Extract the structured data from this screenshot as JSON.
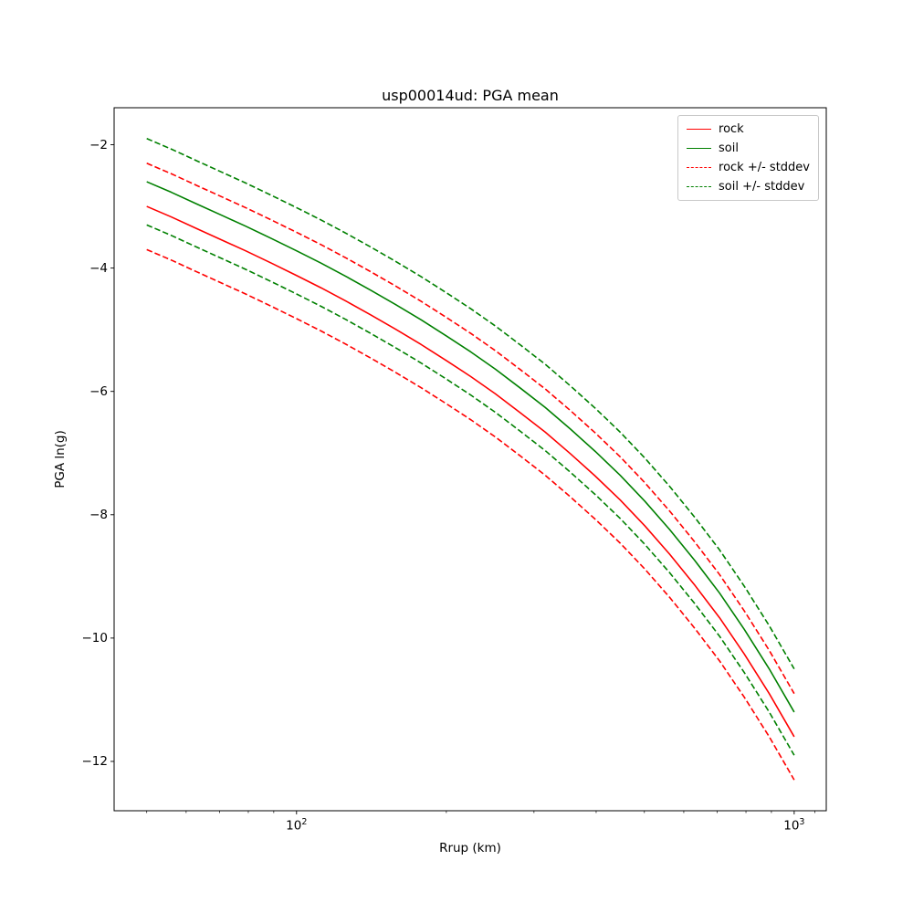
{
  "figure": {
    "title": "usp00014ud: PGA mean",
    "xlabel": "Rrup (km)",
    "ylabel": "PGA ln(g)"
  },
  "legend": {
    "items": [
      {
        "label": "rock",
        "color": "#ff0000",
        "dash": false
      },
      {
        "label": "soil",
        "color": "#008000",
        "dash": false
      },
      {
        "label": "rock +/- stddev",
        "color": "#ff0000",
        "dash": true
      },
      {
        "label": "soil +/- stddev",
        "color": "#008000",
        "dash": true
      }
    ]
  },
  "chart_data": {
    "type": "line",
    "title": "usp00014ud: PGA mean",
    "xlabel": "Rrup (km)",
    "ylabel": "PGA ln(g)",
    "xscale": "log",
    "grid": false,
    "legend_position": "upper right",
    "xlim": [
      43,
      1160
    ],
    "ylim": [
      -12.8,
      -1.4
    ],
    "xticks": [
      {
        "value": 100,
        "label": "10^2"
      },
      {
        "value": 1000,
        "label": "10^3"
      }
    ],
    "xticks_minor": [
      50,
      60,
      70,
      80,
      90,
      200,
      300,
      400,
      500,
      600,
      700,
      800,
      900,
      1100
    ],
    "yticks": [
      {
        "value": -2,
        "label": "−2"
      },
      {
        "value": -4,
        "label": "−4"
      },
      {
        "value": -6,
        "label": "−6"
      },
      {
        "value": -8,
        "label": "−8"
      },
      {
        "value": -10,
        "label": "−10"
      },
      {
        "value": -12,
        "label": "−12"
      }
    ],
    "x": [
      50,
      56,
      63,
      71,
      79,
      89,
      100,
      112,
      126,
      141,
      158,
      178,
      200,
      224,
      251,
      282,
      316,
      355,
      398,
      447,
      501,
      562,
      631,
      708,
      794,
      891,
      1000
    ],
    "series": [
      {
        "name": "rock",
        "color": "#ff0000",
        "style": "solid",
        "values": [
          -3.0,
          -3.17,
          -3.36,
          -3.55,
          -3.72,
          -3.92,
          -4.12,
          -4.32,
          -4.54,
          -4.76,
          -4.99,
          -5.24,
          -5.5,
          -5.76,
          -6.04,
          -6.35,
          -6.66,
          -7.01,
          -7.37,
          -7.76,
          -8.18,
          -8.64,
          -9.14,
          -9.67,
          -10.26,
          -10.9,
          -11.6
        ]
      },
      {
        "name": "soil",
        "color": "#008000",
        "style": "solid",
        "values": [
          -2.6,
          -2.77,
          -2.96,
          -3.15,
          -3.32,
          -3.52,
          -3.72,
          -3.92,
          -4.14,
          -4.36,
          -4.59,
          -4.84,
          -5.1,
          -5.36,
          -5.64,
          -5.95,
          -6.26,
          -6.61,
          -6.97,
          -7.36,
          -7.78,
          -8.24,
          -8.74,
          -9.27,
          -9.86,
          -10.5,
          -11.2
        ]
      },
      {
        "name": "rock +/- stddev",
        "color": "#ff0000",
        "style": "dashed",
        "band_of": "rock",
        "stddev": 0.7
      },
      {
        "name": "soil +/- stddev",
        "color": "#008000",
        "style": "dashed",
        "band_of": "soil",
        "stddev": 0.7
      }
    ]
  }
}
